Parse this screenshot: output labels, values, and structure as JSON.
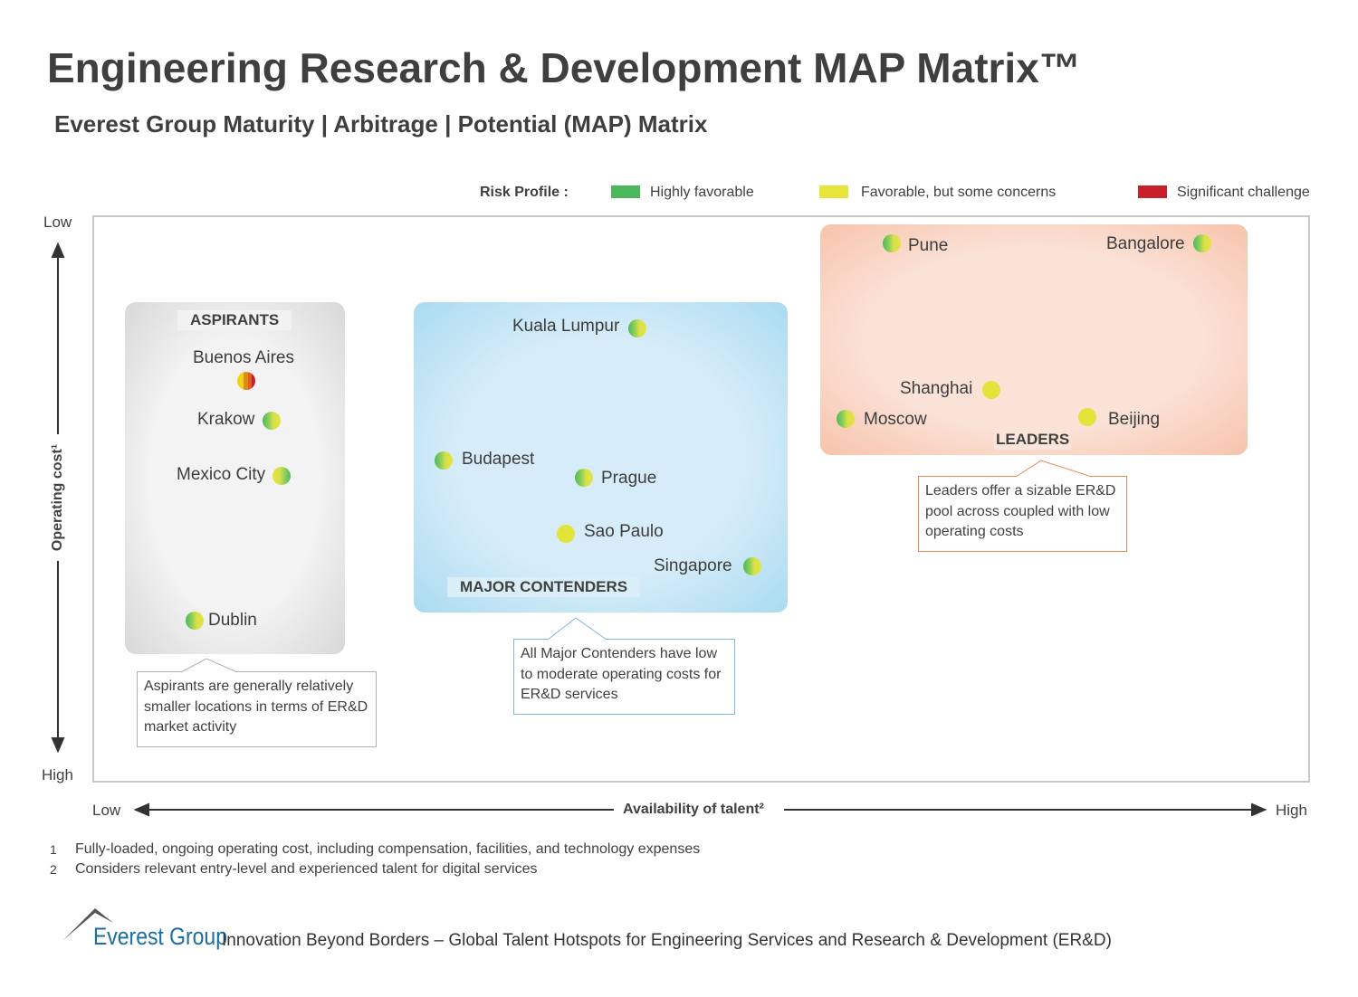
{
  "title": "Engineering Research & Development MAP Matrix™",
  "subtitle": "Everest Group Maturity | Arbitrage | Potential (MAP) Matrix",
  "legend": {
    "label": "Risk Profile :",
    "items": [
      {
        "label": "Highly favorable",
        "color": "#4cb85c"
      },
      {
        "label": "Favorable, but some concerns",
        "color": "#e7e43a"
      },
      {
        "label": "Significant challenge",
        "color": "#c8202a"
      }
    ]
  },
  "y_axis": {
    "label": "Operating cost¹",
    "top": "Low",
    "bottom": "High"
  },
  "x_axis": {
    "label": "Availability of talent²",
    "left": "Low",
    "right": "High"
  },
  "segments": {
    "aspirants": {
      "label": "ASPIRANTS",
      "callout": "Aspirants are generally relatively smaller locations in terms of ER&D market activity"
    },
    "contenders": {
      "label": "MAJOR CONTENDERS",
      "callout": "All Major Contenders have low to moderate operating costs for ER&D services"
    },
    "leaders": {
      "label": "LEADERS",
      "callout": "Leaders offer a sizable ER&D pool across coupled with low operating costs"
    }
  },
  "locations": [
    {
      "name": "Buenos Aires",
      "segment": "Aspirants",
      "risk": "yellow-orange-red"
    },
    {
      "name": "Krakow",
      "segment": "Aspirants",
      "risk": "green-yellow"
    },
    {
      "name": "Mexico City",
      "segment": "Aspirants",
      "risk": "yellow-green"
    },
    {
      "name": "Dublin",
      "segment": "Aspirants",
      "risk": "green-yellow"
    },
    {
      "name": "Kuala Lumpur",
      "segment": "Major Contenders",
      "risk": "green-yellow"
    },
    {
      "name": "Budapest",
      "segment": "Major Contenders",
      "risk": "green-yellow"
    },
    {
      "name": "Prague",
      "segment": "Major Contenders",
      "risk": "green-yellow"
    },
    {
      "name": "Sao Paulo",
      "segment": "Major Contenders",
      "risk": "yellow"
    },
    {
      "name": "Singapore",
      "segment": "Major Contenders",
      "risk": "green-yellow"
    },
    {
      "name": "Pune",
      "segment": "Leaders",
      "risk": "green-yellow"
    },
    {
      "name": "Bangalore",
      "segment": "Leaders",
      "risk": "green-yellow"
    },
    {
      "name": "Shanghai",
      "segment": "Leaders",
      "risk": "yellow"
    },
    {
      "name": "Moscow",
      "segment": "Leaders",
      "risk": "green-yellow"
    },
    {
      "name": "Beijing",
      "segment": "Leaders",
      "risk": "yellow"
    }
  ],
  "footnotes": [
    {
      "num": "1",
      "text": "Fully-loaded, ongoing operating cost, including compensation, facilities, and technology expenses"
    },
    {
      "num": "2",
      "text": "Considers relevant entry-level and experienced talent for digital services"
    }
  ],
  "footer": {
    "logo": "Everest Group",
    "text": "Innovation Beyond Borders – Global Talent Hotspots for Engineering Services and Research & Development (ER&D)"
  }
}
